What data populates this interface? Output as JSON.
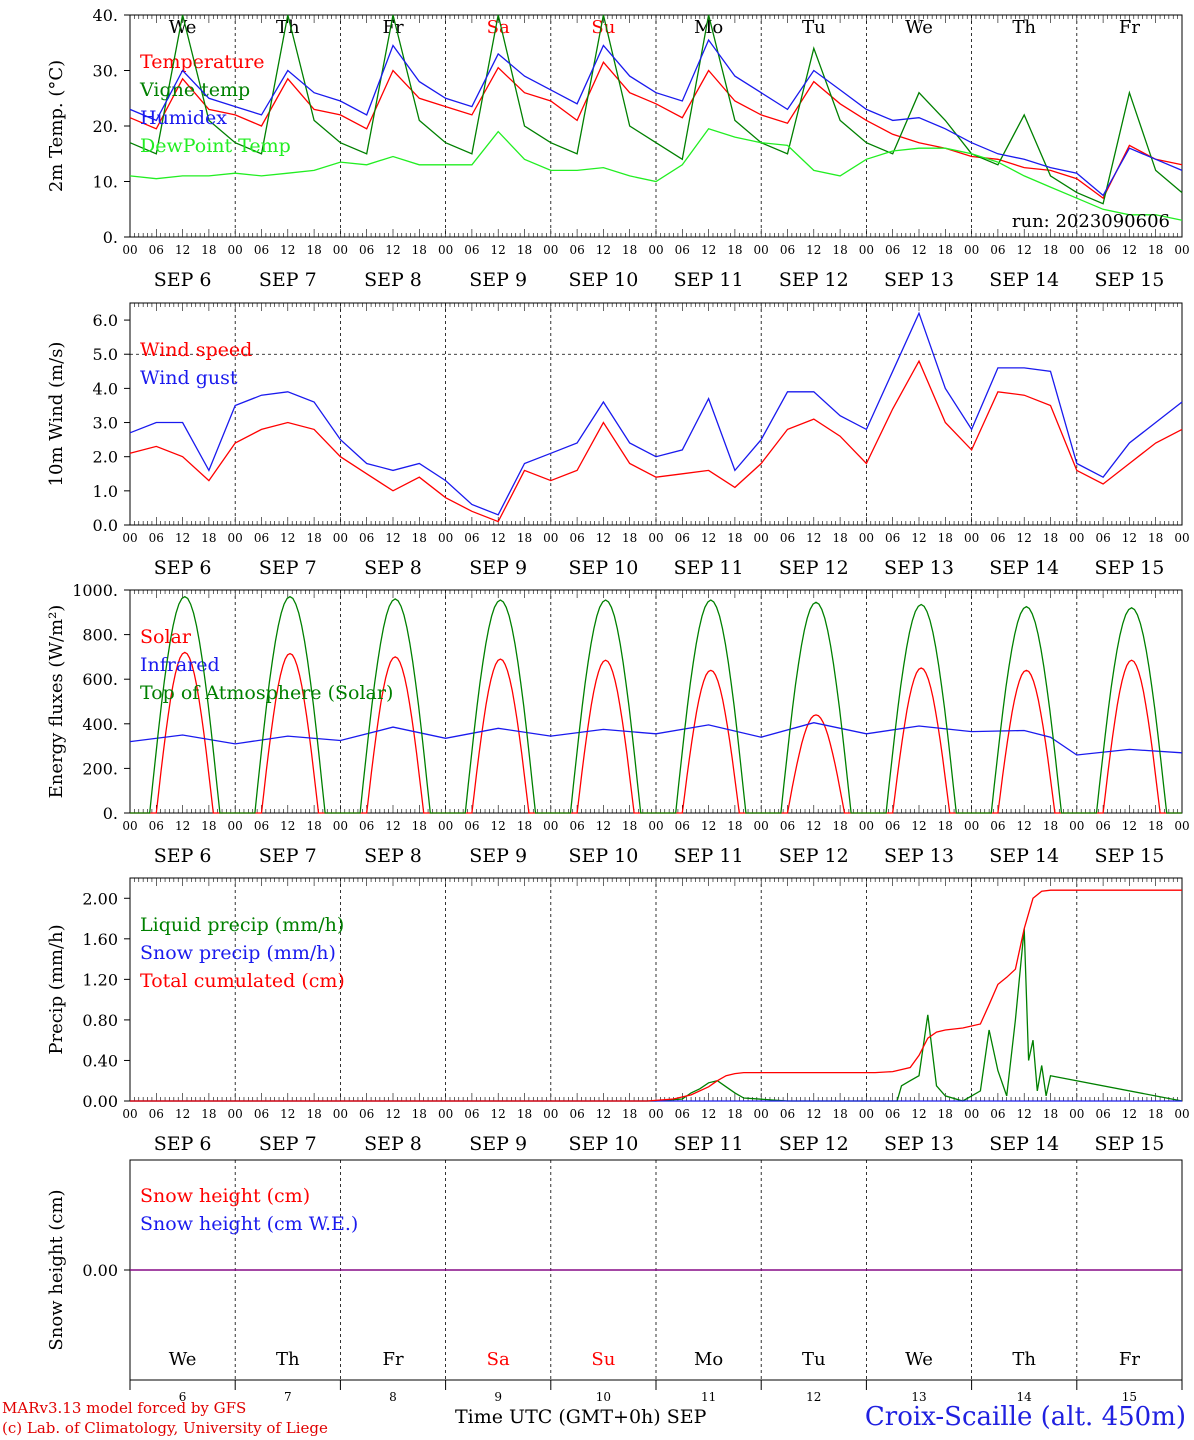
{
  "run_label": "run: 2023090606",
  "footer": {
    "model": "MARv3.13 model forced by GFS",
    "credit": "(c) Lab. of Climatology, University of Liege",
    "axis_title": "Time UTC (GMT+0h)",
    "month": "SEP",
    "station": "Croix-Scaille (alt. 450m)"
  },
  "days": [
    {
      "weekday": "We",
      "date": "SEP  6",
      "num": "6",
      "weekend": false
    },
    {
      "weekday": "Th",
      "date": "SEP  7",
      "num": "7",
      "weekend": false
    },
    {
      "weekday": "Fr",
      "date": "SEP  8",
      "num": "8",
      "weekend": false
    },
    {
      "weekday": "Sa",
      "date": "SEP  9",
      "num": "9",
      "weekend": true
    },
    {
      "weekday": "Su",
      "date": "SEP 10",
      "num": "10",
      "weekend": true
    },
    {
      "weekday": "Mo",
      "date": "SEP 11",
      "num": "11",
      "weekend": false
    },
    {
      "weekday": "Tu",
      "date": "SEP 12",
      "num": "12",
      "weekend": false
    },
    {
      "weekday": "We",
      "date": "SEP 13",
      "num": "13",
      "weekend": false
    },
    {
      "weekday": "Th",
      "date": "SEP 14",
      "num": "14",
      "weekend": false
    },
    {
      "weekday": "Fr",
      "date": "SEP 15",
      "num": "15",
      "weekend": false
    }
  ],
  "hour_labels": [
    "00",
    "06",
    "12",
    "18"
  ],
  "colors": {
    "red": "#ff0000",
    "blue": "#1a1aee",
    "green": "#008000",
    "lightgreen": "#22ee22",
    "purple": "#800080",
    "weekend": "#ff0000"
  },
  "chart_data": [
    {
      "type": "line",
      "ylabel": "2m Temp. (°C)",
      "ylim": [
        0,
        40
      ],
      "yticks": [
        {
          "v": 0,
          "t": "0."
        },
        {
          "v": 10,
          "t": "10."
        },
        {
          "v": 20,
          "t": "20."
        },
        {
          "v": 30,
          "t": "30."
        },
        {
          "v": 40,
          "t": "40."
        }
      ],
      "show_weekdays": true,
      "run_label": true,
      "x_unit": "hours since SEP 6 00 UTC",
      "series": [
        {
          "name": "Temperature",
          "color": "red",
          "x": [
            0,
            6,
            12,
            18,
            24,
            30,
            36,
            42,
            48,
            54,
            60,
            66,
            72,
            78,
            84,
            90,
            96,
            102,
            108,
            114,
            120,
            126,
            132,
            138,
            144,
            150,
            156,
            162,
            168,
            174,
            180,
            186,
            192,
            198,
            204,
            210,
            216,
            222,
            228,
            234,
            240
          ],
          "y": [
            21.5,
            19.5,
            28.5,
            23,
            22,
            20,
            28.5,
            23,
            22,
            19.5,
            30,
            25,
            23.5,
            22,
            30.5,
            26,
            24.5,
            21,
            31.5,
            26,
            24,
            21.5,
            30,
            24.5,
            22,
            20.5,
            28,
            24,
            21,
            18.5,
            17,
            16,
            14.5,
            14,
            12.5,
            12,
            10.5,
            7,
            16.5,
            14,
            13
          ]
        },
        {
          "name": "Vigne temp",
          "color": "green",
          "x": [
            0,
            6,
            12,
            18,
            24,
            30,
            36,
            42,
            48,
            54,
            60,
            66,
            72,
            78,
            84,
            90,
            96,
            102,
            108,
            114,
            120,
            126,
            132,
            138,
            144,
            150,
            156,
            162,
            168,
            174,
            180,
            186,
            192,
            198,
            204,
            210,
            216,
            222,
            228,
            234,
            240
          ],
          "y": [
            17,
            15,
            40,
            21,
            17,
            15,
            40,
            21,
            17,
            15,
            40,
            21,
            17,
            15,
            40,
            20,
            17,
            15,
            40,
            20,
            17,
            14,
            40,
            21,
            17,
            15,
            34,
            21,
            17,
            15,
            26,
            21,
            15,
            13,
            22,
            11,
            8,
            6,
            26,
            12,
            8
          ]
        },
        {
          "name": "Humidex",
          "color": "blue",
          "x": [
            0,
            6,
            12,
            18,
            24,
            30,
            36,
            42,
            48,
            54,
            60,
            66,
            72,
            78,
            84,
            90,
            96,
            102,
            108,
            114,
            120,
            126,
            132,
            138,
            144,
            150,
            156,
            162,
            168,
            174,
            180,
            186,
            192,
            198,
            204,
            210,
            216,
            222,
            228,
            234,
            240
          ],
          "y": [
            23,
            21,
            30,
            25,
            23.5,
            22,
            30,
            26,
            24.5,
            22,
            34.5,
            28,
            25,
            23.5,
            33,
            29,
            26.5,
            24,
            34.5,
            29,
            26,
            24.5,
            35.5,
            29,
            26,
            23,
            30,
            26.5,
            23,
            21,
            21.5,
            19.5,
            17,
            15,
            14,
            12.5,
            11.5,
            7.5,
            16,
            14,
            12
          ]
        },
        {
          "name": "DewPoint Temp",
          "color": "lightgreen",
          "x": [
            0,
            6,
            12,
            18,
            24,
            30,
            36,
            42,
            48,
            54,
            60,
            66,
            72,
            78,
            84,
            90,
            96,
            102,
            108,
            114,
            120,
            126,
            132,
            138,
            144,
            150,
            156,
            162,
            168,
            174,
            180,
            186,
            192,
            198,
            204,
            210,
            216,
            222,
            228,
            234,
            240
          ],
          "y": [
            11,
            10.5,
            11,
            11,
            11.5,
            11,
            11.5,
            12,
            13.5,
            13,
            14.5,
            13,
            13,
            13,
            19,
            14,
            12,
            12,
            12.5,
            11,
            10,
            13,
            19.5,
            18,
            17,
            16.5,
            12,
            11,
            14,
            15.5,
            16,
            16,
            15,
            13.5,
            11,
            9,
            7,
            5,
            4,
            4,
            3
          ]
        }
      ]
    },
    {
      "type": "line",
      "ylabel": "10m Wind (m/s)",
      "ylim": [
        0,
        6.5
      ],
      "yticks": [
        {
          "v": 0,
          "t": "0.0"
        },
        {
          "v": 1,
          "t": "1.0"
        },
        {
          "v": 2,
          "t": "2.0"
        },
        {
          "v": 3,
          "t": "3.0"
        },
        {
          "v": 4,
          "t": "4.0"
        },
        {
          "v": 5,
          "t": "5.0"
        },
        {
          "v": 6,
          "t": "6.0"
        }
      ],
      "ref_line": 5,
      "series": [
        {
          "name": "Wind speed",
          "color": "red",
          "x": [
            0,
            6,
            12,
            18,
            24,
            30,
            36,
            42,
            48,
            54,
            60,
            66,
            72,
            78,
            84,
            90,
            96,
            102,
            108,
            114,
            120,
            126,
            132,
            138,
            144,
            150,
            156,
            162,
            168,
            174,
            180,
            186,
            192,
            198,
            204,
            210,
            216,
            222,
            228,
            234,
            240
          ],
          "y": [
            2.1,
            2.3,
            2.0,
            1.3,
            2.4,
            2.8,
            3.0,
            2.8,
            2.0,
            1.5,
            1.0,
            1.4,
            0.8,
            0.4,
            0.1,
            1.6,
            1.3,
            1.6,
            3.0,
            1.8,
            1.4,
            1.5,
            1.6,
            1.1,
            1.8,
            2.8,
            3.1,
            2.6,
            1.8,
            3.4,
            4.8,
            3.0,
            2.2,
            3.9,
            3.8,
            3.5,
            1.6,
            1.2,
            1.8,
            2.4,
            2.8
          ]
        },
        {
          "name": "Wind gust",
          "color": "blue",
          "x": [
            0,
            6,
            12,
            18,
            24,
            30,
            36,
            42,
            48,
            54,
            60,
            66,
            72,
            78,
            84,
            90,
            96,
            102,
            108,
            114,
            120,
            126,
            132,
            138,
            144,
            150,
            156,
            162,
            168,
            174,
            180,
            186,
            192,
            198,
            204,
            210,
            216,
            222,
            228,
            234,
            240
          ],
          "y": [
            2.7,
            3.0,
            3.0,
            1.6,
            3.5,
            3.8,
            3.9,
            3.6,
            2.5,
            1.8,
            1.6,
            1.8,
            1.3,
            0.6,
            0.3,
            1.8,
            2.1,
            2.4,
            3.6,
            2.4,
            2.0,
            2.2,
            3.7,
            1.6,
            2.5,
            3.9,
            3.9,
            3.2,
            2.8,
            4.5,
            6.2,
            4.0,
            2.8,
            4.6,
            4.6,
            4.5,
            1.8,
            1.4,
            2.4,
            3.0,
            3.6
          ]
        }
      ]
    },
    {
      "type": "line",
      "ylabel": "Energy fluxes (W/m²)",
      "ylim": [
        0,
        1000
      ],
      "yticks": [
        {
          "v": 0,
          "t": "0."
        },
        {
          "v": 200,
          "t": "200."
        },
        {
          "v": 400,
          "t": "400."
        },
        {
          "v": 600,
          "t": "600."
        },
        {
          "v": 800,
          "t": "800."
        },
        {
          "v": 1000,
          "t": "1000."
        }
      ],
      "daily_peaks": {
        "solar_peak_hour": 12.5,
        "solar": [
          720,
          715,
          700,
          690,
          685,
          640,
          440,
          650,
          640,
          685
        ],
        "toa": [
          970,
          970,
          960,
          955,
          955,
          955,
          945,
          935,
          925,
          920
        ]
      },
      "series": [
        {
          "name": "Solar",
          "color": "red",
          "note": "daily cycle from daily_peaks.solar"
        },
        {
          "name": "Infrared",
          "color": "blue",
          "x": [
            0,
            12,
            24,
            36,
            48,
            60,
            72,
            84,
            96,
            108,
            120,
            132,
            144,
            156,
            168,
            180,
            192,
            204,
            210,
            216,
            228,
            240
          ],
          "y": [
            320,
            350,
            310,
            345,
            325,
            385,
            335,
            380,
            345,
            375,
            355,
            395,
            340,
            405,
            355,
            390,
            365,
            370,
            340,
            260,
            285,
            270
          ]
        },
        {
          "name": "Top of Atmosphere (Solar)",
          "color": "green",
          "note": "daily cycle from daily_peaks.toa"
        }
      ]
    },
    {
      "type": "line",
      "ylabel": "Precip (mm/h)",
      "ylim": [
        0,
        2.2
      ],
      "yticks": [
        {
          "v": 0,
          "t": "0.00"
        },
        {
          "v": 0.4,
          "t": "0.40"
        },
        {
          "v": 0.8,
          "t": "0.80"
        },
        {
          "v": 1.2,
          "t": "1.20"
        },
        {
          "v": 1.6,
          "t": "1.60"
        },
        {
          "v": 2.0,
          "t": "2.00"
        }
      ],
      "series": [
        {
          "name": "Liquid precip (mm/h)",
          "color": "green",
          "x": [
            0,
            120,
            126,
            128,
            130,
            132,
            134,
            136,
            138,
            140,
            150,
            175,
            176,
            178,
            180,
            182,
            184,
            186,
            190,
            194,
            196,
            198,
            200,
            202,
            204,
            205,
            206,
            207,
            208,
            209,
            210,
            240
          ],
          "y": [
            0,
            0,
            0.02,
            0.08,
            0.12,
            0.18,
            0.2,
            0.14,
            0.08,
            0.03,
            0,
            0,
            0.15,
            0.2,
            0.25,
            0.85,
            0.15,
            0.05,
            0,
            0.1,
            0.7,
            0.3,
            0.05,
            0.8,
            1.7,
            0.4,
            0.6,
            0.1,
            0.35,
            0.05,
            0.25,
            0
          ]
        },
        {
          "name": "Snow precip (mm/h)",
          "color": "blue",
          "x": [
            0,
            240
          ],
          "y": [
            0,
            0
          ]
        },
        {
          "name": "Total cumulated (cm)",
          "color": "red",
          "x": [
            0,
            118,
            124,
            128,
            132,
            134,
            136,
            138,
            140,
            150,
            160,
            170,
            174,
            178,
            180,
            182,
            184,
            186,
            190,
            194,
            196,
            198,
            200,
            202,
            204,
            206,
            208,
            210,
            240
          ],
          "y": [
            0,
            0,
            0.02,
            0.06,
            0.14,
            0.2,
            0.25,
            0.27,
            0.28,
            0.28,
            0.28,
            0.28,
            0.29,
            0.33,
            0.45,
            0.62,
            0.68,
            0.7,
            0.72,
            0.76,
            0.95,
            1.15,
            1.22,
            1.3,
            1.7,
            2.0,
            2.07,
            2.08,
            2.08
          ]
        }
      ]
    },
    {
      "type": "line",
      "ylabel": "Snow height (cm)",
      "ylim": [
        -1,
        1
      ],
      "yticks": [
        {
          "v": 0,
          "t": "0.00"
        }
      ],
      "bottom_panel": true,
      "series": [
        {
          "name": "Snow height (cm)",
          "color": "red",
          "x": [
            0,
            240
          ],
          "y": [
            0,
            0
          ]
        },
        {
          "name": "Snow height (cm W.E.)",
          "color": "blue",
          "x": [
            0,
            240
          ],
          "y": [
            0,
            0
          ]
        }
      ]
    }
  ]
}
